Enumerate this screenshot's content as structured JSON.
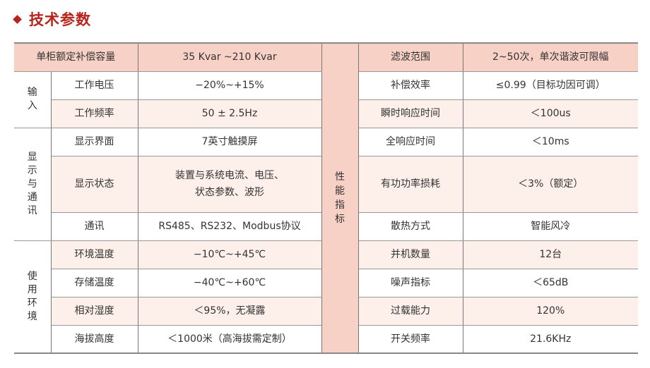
{
  "title": "技术参数",
  "colors": {
    "accent": "#b8231c",
    "header_bg": "#f7d1c5",
    "alt_row_bg": "#fdefea"
  },
  "header": {
    "left_label": "单柜额定补偿容量",
    "left_value": "35 Kvar ~210 Kvar",
    "right_label": "滤波范围",
    "right_value": "2~50次，单次谐波可限幅"
  },
  "performance_group": "性能指标",
  "groups": [
    {
      "name": "输入",
      "rows": [
        {
          "label": "工作电压",
          "value": "−20%~+15%"
        },
        {
          "label": "工作频率",
          "value": "50 ± 2.5Hz"
        }
      ]
    },
    {
      "name": "显示与通讯",
      "rows": [
        {
          "label": "显示界面",
          "value": "7英寸触摸屏"
        },
        {
          "label": "显示状态",
          "value_line1": "装置与系统电流、电压、",
          "value_line2": "状态参数、波形"
        },
        {
          "label": "通讯",
          "value": "RS485、RS232、Modbus协议"
        }
      ]
    },
    {
      "name": "使用环境",
      "rows": [
        {
          "label": "环境温度",
          "value": "−10℃~+45℃"
        },
        {
          "label": "存储温度",
          "value": "−40℃~+60℃"
        },
        {
          "label": "相对湿度",
          "value": "＜95%，无凝露"
        },
        {
          "label": "海拔高度",
          "value": "＜1000米（高海拔需定制）"
        }
      ]
    }
  ],
  "performance": [
    {
      "label": "补偿效率",
      "value": "≤0.99（目标功因可调）"
    },
    {
      "label": "瞬时响应时间",
      "value": "＜100us"
    },
    {
      "label": "全响应时间",
      "value": "＜10ms"
    },
    {
      "label": "有功功率损耗",
      "value": "＜3%（额定）"
    },
    {
      "label": "散热方式",
      "value": "智能风冷"
    },
    {
      "label": "并机数量",
      "value": "12台"
    },
    {
      "label": "噪声指标",
      "value": "＜65dB"
    },
    {
      "label": "过载能力",
      "value": "120%"
    },
    {
      "label": "开关频率",
      "value": "21.6KHz"
    }
  ]
}
